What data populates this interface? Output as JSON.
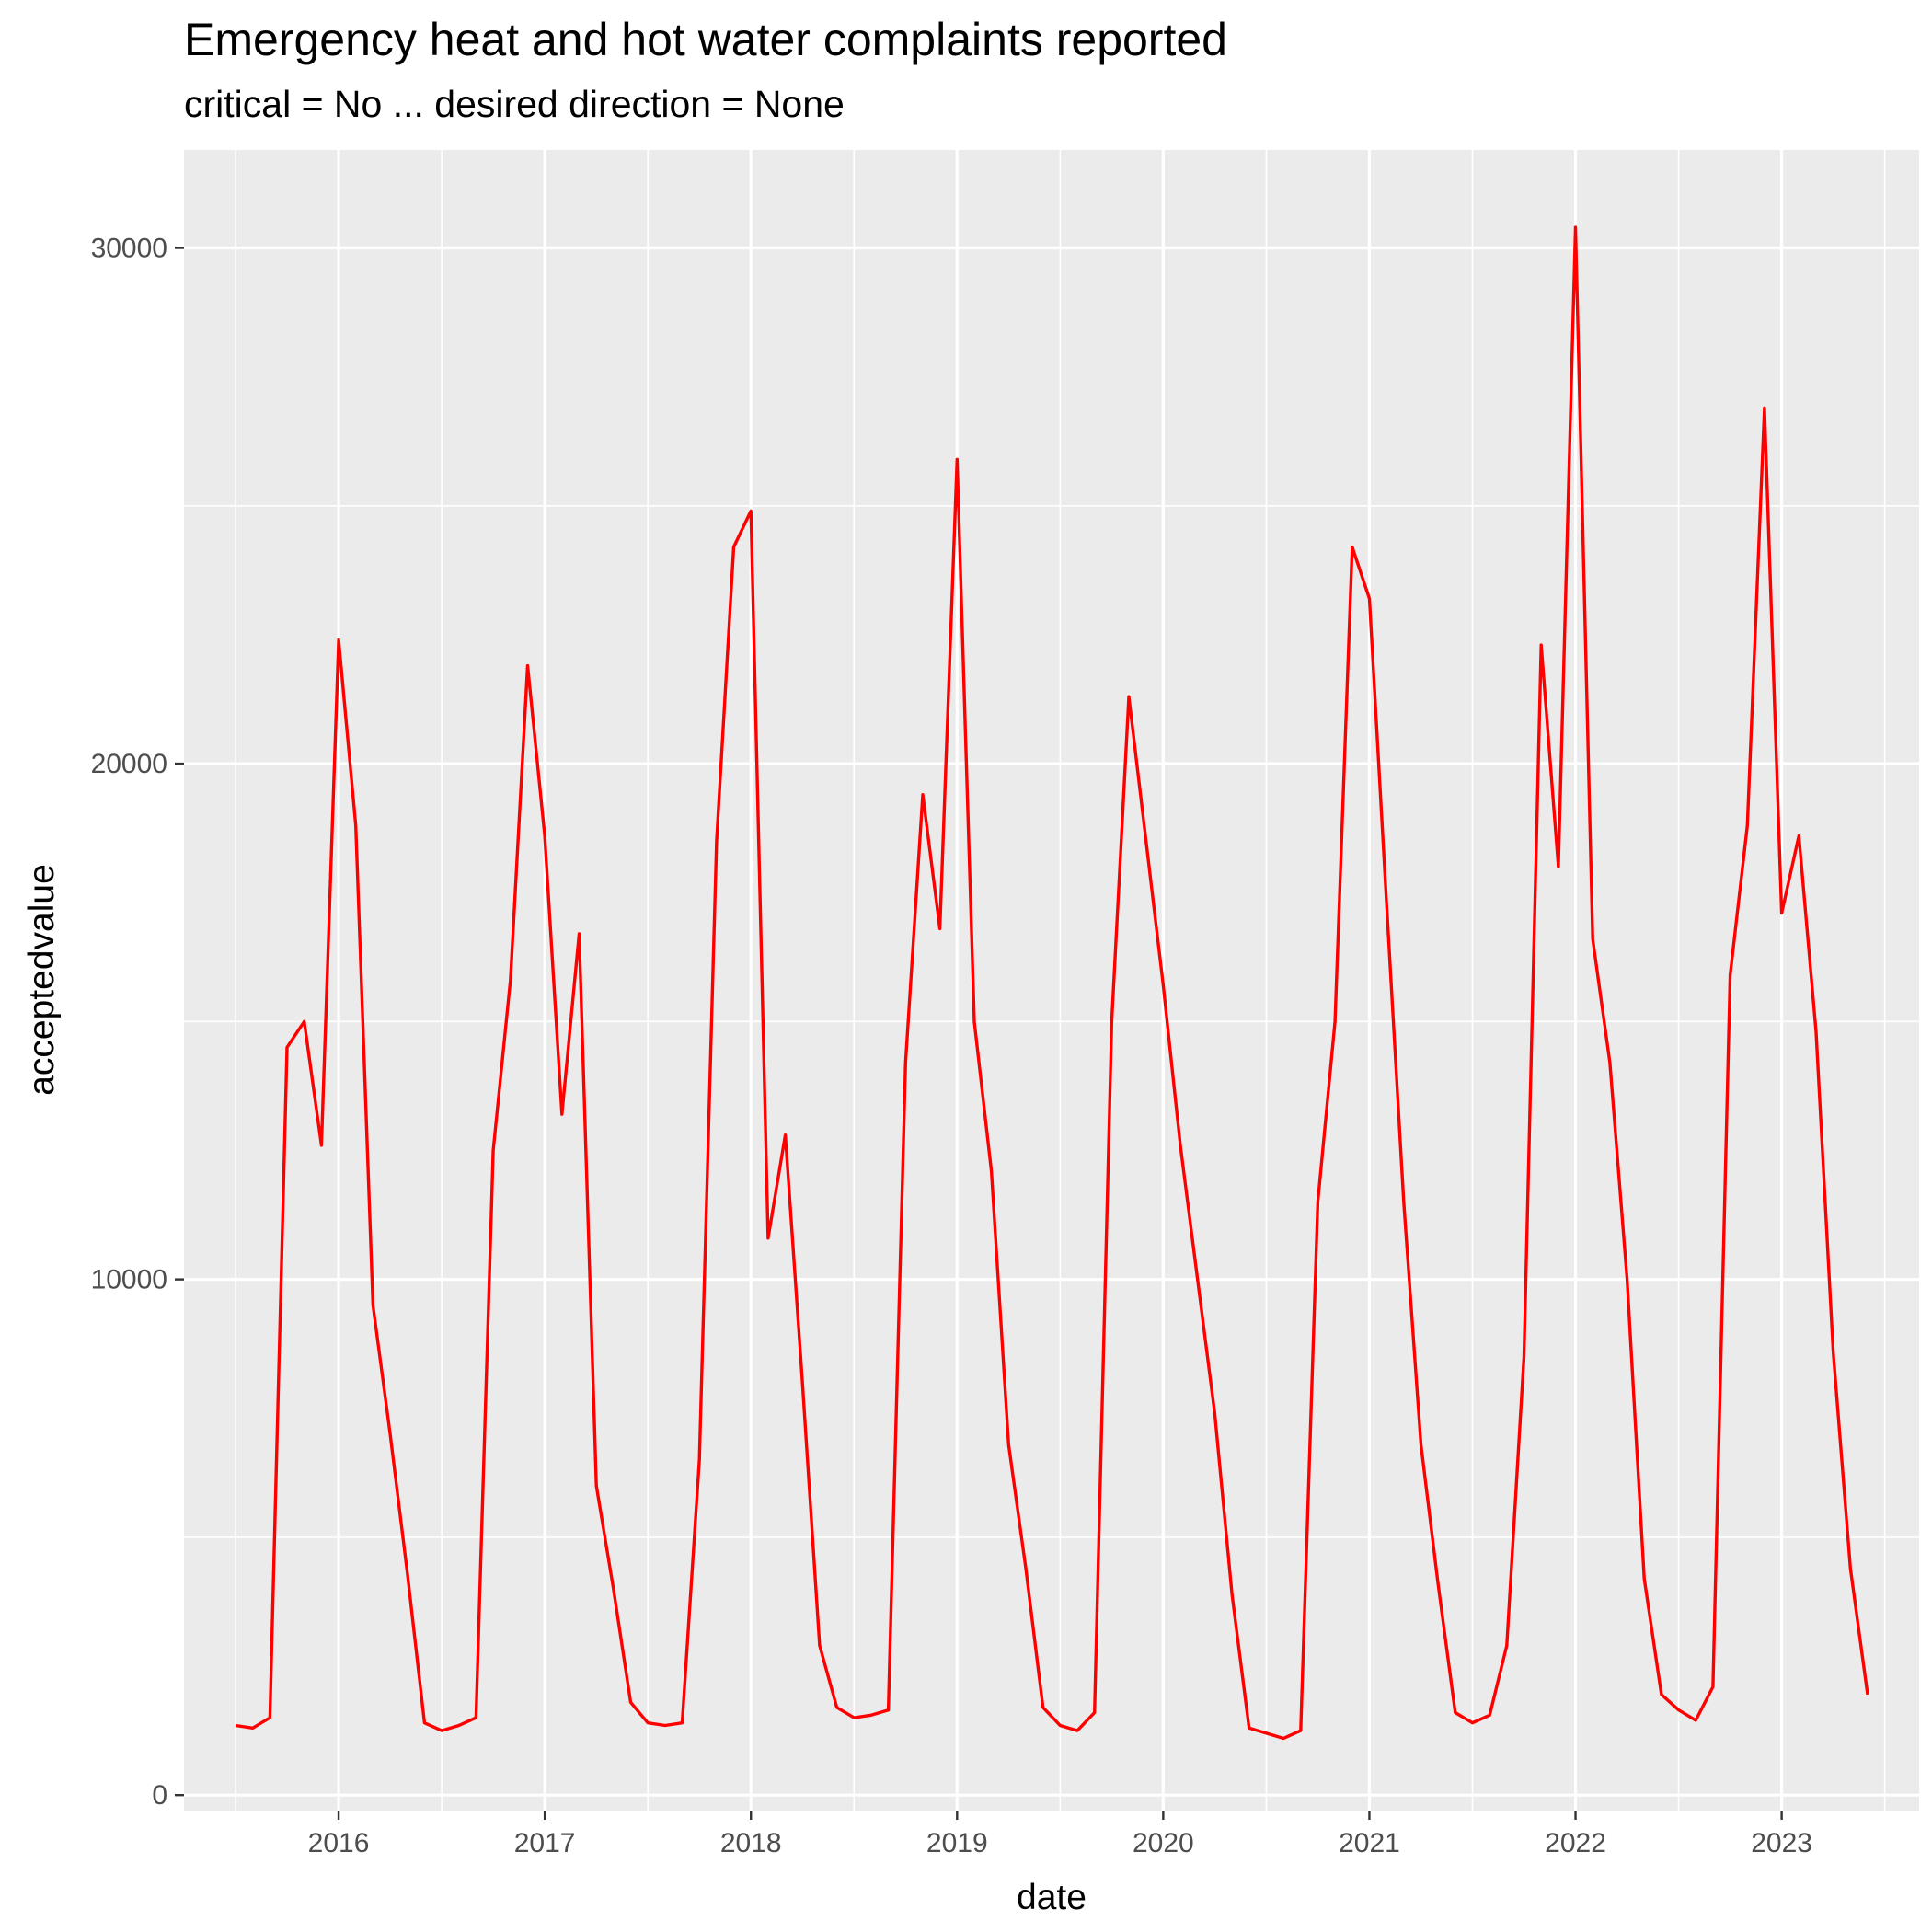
{
  "chart_data": {
    "type": "line",
    "title": "Emergency heat and hot water complaints reported",
    "subtitle": "critical = No ... desired direction = None",
    "xlabel": "date",
    "ylabel": "acceptedvalue",
    "xlim": [
      "2015-04-01",
      "2023-09-01"
    ],
    "ylim": [
      -300,
      31900
    ],
    "x_ticks": [
      "2016",
      "2017",
      "2018",
      "2019",
      "2020",
      "2021",
      "2022",
      "2023"
    ],
    "y_ticks": [
      0,
      10000,
      20000,
      30000
    ],
    "y_tick_labels": [
      "0",
      "10000",
      "20000",
      "30000"
    ],
    "grid": true,
    "line_color": "#ff0000",
    "x": [
      "2015-07",
      "2015-08",
      "2015-09",
      "2015-10",
      "2015-11",
      "2015-12",
      "2016-01",
      "2016-02",
      "2016-03",
      "2016-04",
      "2016-05",
      "2016-06",
      "2016-07",
      "2016-08",
      "2016-09",
      "2016-10",
      "2016-11",
      "2016-12",
      "2017-01",
      "2017-02",
      "2017-03",
      "2017-04",
      "2017-05",
      "2017-06",
      "2017-07",
      "2017-08",
      "2017-09",
      "2017-10",
      "2017-11",
      "2017-12",
      "2018-01",
      "2018-02",
      "2018-03",
      "2018-04",
      "2018-05",
      "2018-06",
      "2018-07",
      "2018-08",
      "2018-09",
      "2018-10",
      "2018-11",
      "2018-12",
      "2019-01",
      "2019-02",
      "2019-03",
      "2019-04",
      "2019-05",
      "2019-06",
      "2019-07",
      "2019-08",
      "2019-09",
      "2019-10",
      "2019-11",
      "2019-12",
      "2020-01",
      "2020-02",
      "2020-03",
      "2020-04",
      "2020-05",
      "2020-06",
      "2020-07",
      "2020-08",
      "2020-09",
      "2020-10",
      "2020-11",
      "2020-12",
      "2021-01",
      "2021-02",
      "2021-03",
      "2021-04",
      "2021-05",
      "2021-06",
      "2021-07",
      "2021-08",
      "2021-09",
      "2021-10",
      "2021-11",
      "2021-12",
      "2022-01",
      "2022-02",
      "2022-03",
      "2022-04",
      "2022-05",
      "2022-06",
      "2022-07",
      "2022-08",
      "2022-09",
      "2022-10",
      "2022-11",
      "2022-12",
      "2023-01",
      "2023-02",
      "2023-03",
      "2023-04",
      "2023-05",
      "2023-06"
    ],
    "values": [
      1350,
      1300,
      1500,
      14500,
      15000,
      12600,
      22400,
      18800,
      9500,
      7000,
      4300,
      1400,
      1250,
      1350,
      1500,
      12500,
      15800,
      21900,
      18600,
      13200,
      16700,
      6000,
      4000,
      1800,
      1400,
      1350,
      1400,
      6500,
      18500,
      24200,
      24900,
      10800,
      12800,
      8000,
      2900,
      1700,
      1500,
      1550,
      1650,
      14200,
      19400,
      16800,
      25900,
      15000,
      12100,
      6800,
      4400,
      1700,
      1350,
      1250,
      1600,
      15000,
      21300,
      18500,
      15700,
      12600,
      10000,
      7400,
      3900,
      1300,
      1200,
      1100,
      1250,
      11500,
      15000,
      24200,
      23200,
      17300,
      11500,
      6800,
      4100,
      1600,
      1400,
      1550,
      2900,
      8500,
      22300,
      18000,
      30400,
      16600,
      14200,
      10000,
      4200,
      1950,
      1650,
      1450,
      2100,
      15900,
      18800,
      26900,
      17100,
      18600,
      14800,
      8600,
      4400,
      1950
    ]
  }
}
